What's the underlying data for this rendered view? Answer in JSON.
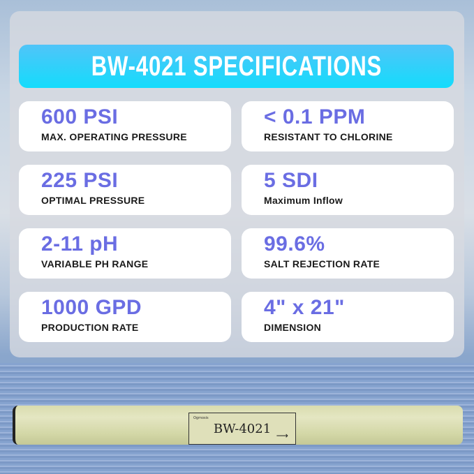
{
  "header": {
    "title": "BW-4021  SPECIFICATIONS"
  },
  "specs": [
    {
      "value": "600 PSI",
      "label": "MAX. OPERATING PRESSURE"
    },
    {
      "value": "< 0.1 PPM",
      "label": "RESISTANT TO CHLORINE"
    },
    {
      "value": "225 PSI",
      "label": "OPTIMAL PRESSURE"
    },
    {
      "value": "5 SDI",
      "label": "Maximum Inflow"
    },
    {
      "value": "2-11 pH",
      "label": "VARIABLE PH RANGE"
    },
    {
      "value": "99.6%",
      "label": "SALT REJECTION RATE"
    },
    {
      "value": "1000 GPD",
      "label": "PRODUCTION RATE"
    },
    {
      "value": "4\" x 21\"",
      "label": "DIMENSION"
    }
  ],
  "product": {
    "brand": "Ogmosis",
    "model": "BW-4021"
  },
  "colors": {
    "accent": "#6a6de3",
    "header": "#14dcfc"
  }
}
